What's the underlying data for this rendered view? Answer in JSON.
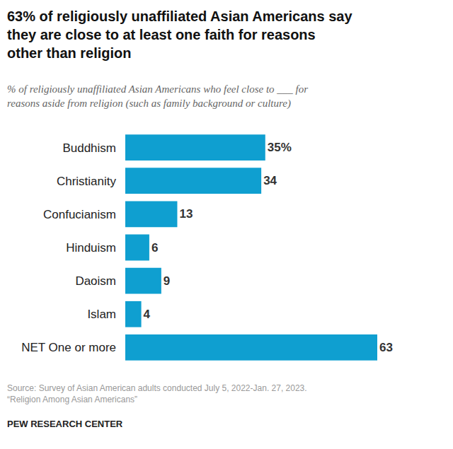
{
  "chart_data": {
    "type": "bar",
    "title": "63% of religiously unaffiliated Asian Americans say they are close to at least one faith for reasons other than religion",
    "subtitle": "% of religiously unaffiliated Asian Americans who feel close to ___ for reasons aside from religion (such as family background or culture)",
    "categories": [
      "Buddhism",
      "Christianity",
      "Confucianism",
      "Hinduism",
      "Daoism",
      "Islam",
      "NET One or more"
    ],
    "values": [
      35,
      34,
      13,
      6,
      9,
      4,
      63
    ],
    "value_labels": [
      "35%",
      "34",
      "13",
      "6",
      "9",
      "4",
      "63"
    ],
    "color": "#0f9fd0",
    "orientation": "horizontal",
    "data_labels": true,
    "tick_labels": "y",
    "xlim": [
      0,
      63
    ],
    "grid": false,
    "source": "Source: Survey of Asian American adults conducted July 5, 2022-Jan. 27, 2023. “Religion Among Asian Americans”",
    "credit": "PEW RESEARCH CENTER"
  }
}
